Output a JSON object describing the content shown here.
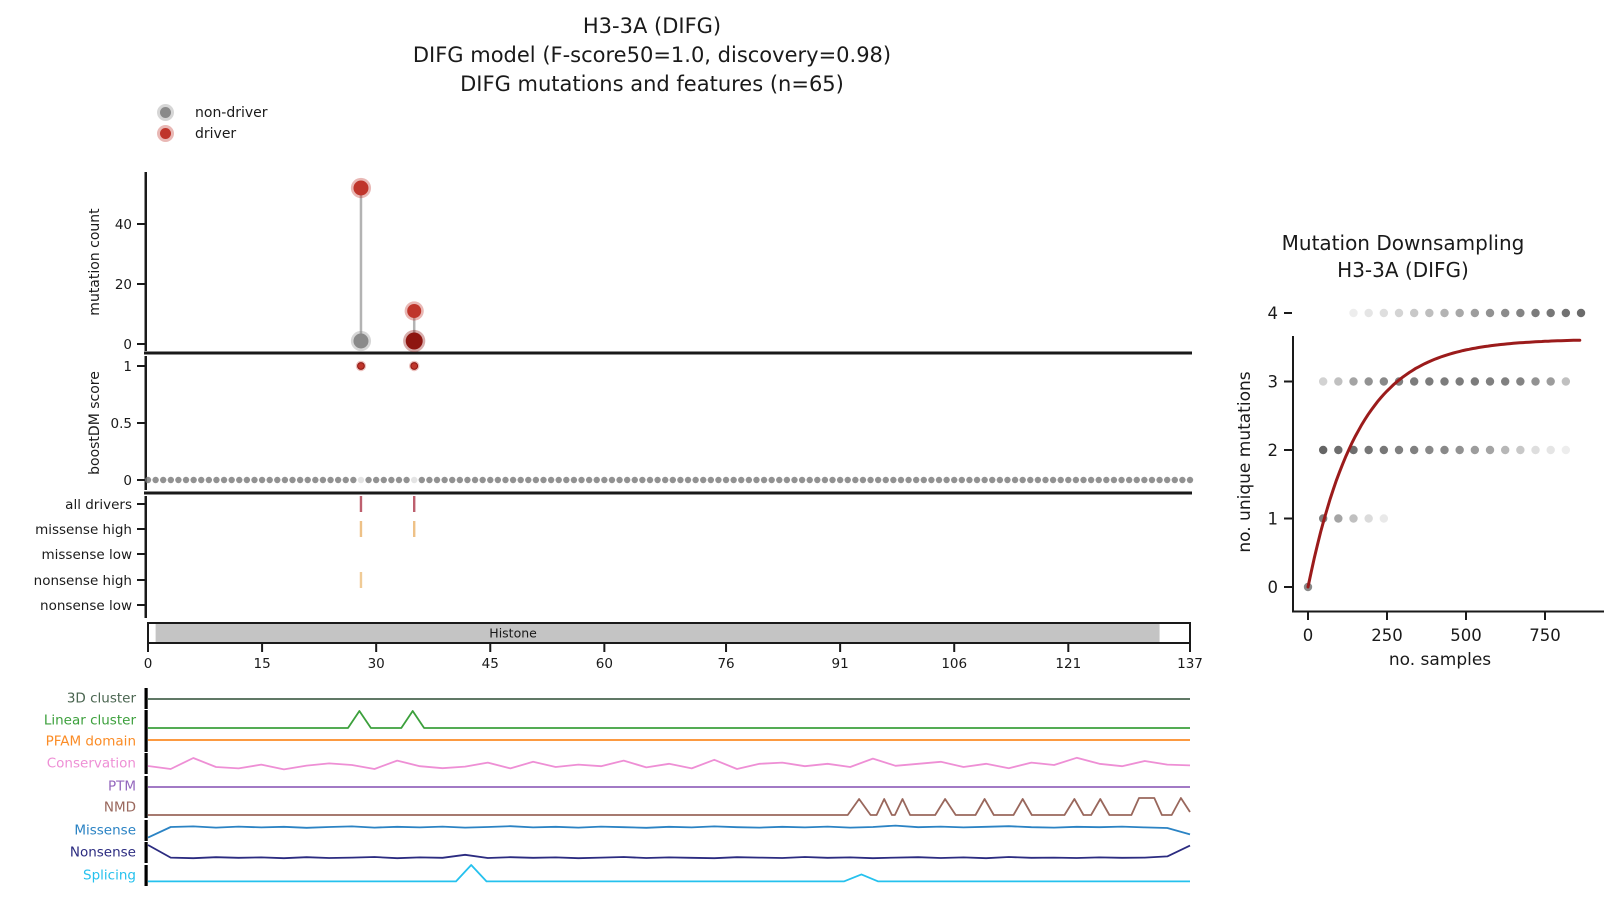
{
  "header": {
    "line1": "H3-3A (DIFG)",
    "line2": "DIFG model (F-score50=1.0, discovery=0.98)",
    "line3": "DIFG mutations and features (n=65)"
  },
  "legend": {
    "nondriver": "non-driver",
    "driver": "driver"
  },
  "colors": {
    "driver": "#bf352b",
    "driver_dark": "#8e1510",
    "nondriver": "#8a8a8a",
    "stem": "#b3b3b3",
    "zero_row_dot": "#777777",
    "axis": "#1a1a1a",
    "domain_bar_fill": "#c4c4c4",
    "downsampling_curve": "#9b1b1b",
    "downsampling_dot": "#4a4a4a"
  },
  "chart_data": [
    {
      "type": "scatter",
      "name": "mutations_needle_plot",
      "xlim": [
        0,
        137
      ],
      "xticks": [
        0,
        15,
        30,
        45,
        60,
        76,
        91,
        106,
        121,
        137
      ],
      "panels": {
        "mutation_count": {
          "ylabel": "mutation count",
          "yticks": [
            0,
            20,
            40
          ],
          "lollipops": [
            {
              "pos": 28,
              "stem_from": 1,
              "stem_to": 52,
              "points": [
                {
                  "count": 52,
                  "class": "driver",
                  "r": 7.5
                },
                {
                  "count": 1,
                  "class": "non-driver",
                  "r": 7.5
                }
              ]
            },
            {
              "pos": 35,
              "stem_from": 1,
              "stem_to": 11,
              "points": [
                {
                  "count": 11,
                  "class": "driver",
                  "r": 7
                },
                {
                  "count": 1,
                  "class": "driver-dark",
                  "r": 8.5
                }
              ]
            }
          ]
        },
        "boostdm_score": {
          "ylabel": "boostDM score",
          "yticks": [
            0,
            0.5,
            1
          ],
          "driver_points": [
            {
              "pos": 28,
              "score": 1
            },
            {
              "pos": 35,
              "score": 1
            }
          ],
          "zero_row": {
            "score": 0,
            "from": 0,
            "to": 137,
            "light_positions": [
              28,
              35
            ]
          }
        },
        "driver_tracks": {
          "rows": [
            {
              "label": "all drivers",
              "ticks": [
                28,
                35
              ],
              "color": "#bd5f6e"
            },
            {
              "label": "missense high",
              "ticks": [
                28,
                35
              ],
              "color": "#eec187"
            },
            {
              "label": "missense low",
              "ticks": [],
              "color": "#eec187"
            },
            {
              "label": "nonsense high",
              "ticks": [
                28
              ],
              "color": "#f0cb96"
            },
            {
              "label": "nonsense low",
              "ticks": [],
              "color": "#f0cb96"
            }
          ]
        },
        "domain_bar": {
          "label": "Histone",
          "start": 1,
          "end": 133,
          "label_pos": 48
        }
      }
    },
    {
      "type": "line",
      "name": "feature_tracks",
      "xlim": [
        0,
        137
      ],
      "tracks": [
        {
          "label": "3D cluster",
          "color": "#4a6550",
          "shape": "flat"
        },
        {
          "label": "Linear cluster",
          "color": "#3ca03c",
          "shape": "keypoints",
          "points": [
            [
              0,
              0
            ],
            [
              26.3,
              0
            ],
            [
              27.8,
              0.85
            ],
            [
              29.3,
              0
            ],
            [
              33.3,
              0
            ],
            [
              34.8,
              0.85
            ],
            [
              36.3,
              0
            ],
            [
              137,
              0
            ]
          ]
        },
        {
          "label": "PFAM domain",
          "color": "#fb8c26",
          "shape": "flat"
        },
        {
          "label": "Conservation",
          "color": "#ee8fd5",
          "shape": "values",
          "values": [
            0.45,
            0.3,
            0.85,
            0.4,
            0.33,
            0.52,
            0.28,
            0.47,
            0.58,
            0.5,
            0.3,
            0.72,
            0.44,
            0.34,
            0.42,
            0.62,
            0.33,
            0.66,
            0.4,
            0.52,
            0.44,
            0.72,
            0.38,
            0.56,
            0.33,
            0.76,
            0.3,
            0.56,
            0.62,
            0.44,
            0.56,
            0.4,
            0.82,
            0.46,
            0.56,
            0.66,
            0.4,
            0.56,
            0.34,
            0.62,
            0.5,
            0.86,
            0.56,
            0.44,
            0.7,
            0.52,
            0.48
          ]
        },
        {
          "label": "PTM",
          "color": "#9467bd",
          "shape": "flat"
        },
        {
          "label": "NMD",
          "color": "#99675c",
          "shape": "keypoints",
          "points": [
            [
              0,
              0
            ],
            [
              92,
              0
            ],
            [
              93.5,
              0.8
            ],
            [
              95,
              0
            ],
            [
              95.8,
              0
            ],
            [
              96.8,
              0.8
            ],
            [
              97.8,
              0
            ],
            [
              98.2,
              0
            ],
            [
              99.2,
              0.8
            ],
            [
              100.2,
              0
            ],
            [
              103.5,
              0
            ],
            [
              104.8,
              0.8
            ],
            [
              106.2,
              0
            ],
            [
              108.8,
              0
            ],
            [
              110,
              0.8
            ],
            [
              111.2,
              0
            ],
            [
              113.8,
              0
            ],
            [
              115,
              0.8
            ],
            [
              116.2,
              0
            ],
            [
              120.5,
              0
            ],
            [
              121.8,
              0.8
            ],
            [
              123,
              0
            ],
            [
              124,
              0
            ],
            [
              125.2,
              0.8
            ],
            [
              126.4,
              0
            ],
            [
              129.3,
              0
            ],
            [
              130.3,
              0.85
            ],
            [
              132.3,
              0.85
            ],
            [
              133.3,
              0
            ],
            [
              134.6,
              0
            ],
            [
              135.8,
              0.85
            ],
            [
              137,
              0.15
            ]
          ]
        },
        {
          "label": "Missense",
          "color": "#2b83c4",
          "shape": "values",
          "values": [
            0.02,
            0.55,
            0.58,
            0.52,
            0.57,
            0.53,
            0.56,
            0.51,
            0.55,
            0.58,
            0.52,
            0.56,
            0.53,
            0.57,
            0.52,
            0.55,
            0.59,
            0.53,
            0.56,
            0.52,
            0.57,
            0.54,
            0.51,
            0.56,
            0.53,
            0.58,
            0.54,
            0.52,
            0.56,
            0.53,
            0.57,
            0.52,
            0.55,
            0.62,
            0.54,
            0.57,
            0.53,
            0.56,
            0.59,
            0.54,
            0.52,
            0.56,
            0.54,
            0.57,
            0.53,
            0.5,
            0.18
          ]
        },
        {
          "label": "Nonsense",
          "color": "#2b2b80",
          "shape": "values",
          "values": [
            0.75,
            0.12,
            0.09,
            0.14,
            0.11,
            0.13,
            0.09,
            0.14,
            0.1,
            0.12,
            0.15,
            0.09,
            0.13,
            0.11,
            0.26,
            0.1,
            0.14,
            0.11,
            0.13,
            0.09,
            0.12,
            0.15,
            0.1,
            0.13,
            0.11,
            0.09,
            0.14,
            0.12,
            0.1,
            0.15,
            0.11,
            0.13,
            0.09,
            0.12,
            0.14,
            0.1,
            0.13,
            0.09,
            0.15,
            0.11,
            0.12,
            0.1,
            0.13,
            0.11,
            0.12,
            0.18,
            0.72
          ]
        },
        {
          "label": "Splicing",
          "color": "#25c1ee",
          "shape": "keypoints",
          "points": [
            [
              0,
              0.03
            ],
            [
              40.5,
              0.03
            ],
            [
              42.5,
              0.85
            ],
            [
              44.5,
              0.03
            ],
            [
              91.5,
              0.03
            ],
            [
              93.8,
              0.38
            ],
            [
              96,
              0.03
            ],
            [
              137,
              0.03
            ]
          ]
        }
      ]
    },
    {
      "type": "scatter",
      "name": "mutation_downsampling",
      "title_line1": "Mutation Downsampling",
      "title_line2": "H3-3A (DIFG)",
      "xlabel": "no. samples",
      "ylabel": "no. unique mutations",
      "xticks": [
        0,
        250,
        500,
        750
      ],
      "yticks": [
        0,
        1,
        2,
        3,
        4
      ],
      "xlim": [
        0,
        880
      ],
      "ylim": [
        0,
        4.3
      ],
      "curve": {
        "max_unique": 3.62,
        "tau": 160,
        "x_end": 860
      },
      "dot_rows": [
        {
          "y": 0,
          "x": [
            0
          ],
          "opacity": [
            0.65
          ]
        },
        {
          "y": 1,
          "x": [
            48,
            96,
            144,
            192,
            240
          ],
          "opacity": [
            0.7,
            0.5,
            0.35,
            0.2,
            0.12
          ]
        },
        {
          "y": 2,
          "x": [
            48,
            96,
            144,
            192,
            240,
            288,
            336,
            384,
            432,
            480,
            528,
            576,
            624,
            672,
            720,
            768,
            816
          ],
          "opacity": [
            0.85,
            0.8,
            0.8,
            0.75,
            0.75,
            0.7,
            0.7,
            0.65,
            0.65,
            0.6,
            0.55,
            0.5,
            0.4,
            0.3,
            0.18,
            0.14,
            0.1
          ]
        },
        {
          "y": 3,
          "x": [
            48,
            96,
            144,
            192,
            240,
            288,
            336,
            384,
            432,
            480,
            528,
            576,
            624,
            672,
            720,
            768,
            816
          ],
          "opacity": [
            0.25,
            0.35,
            0.5,
            0.6,
            0.65,
            0.7,
            0.72,
            0.72,
            0.72,
            0.72,
            0.72,
            0.7,
            0.7,
            0.68,
            0.6,
            0.55,
            0.35
          ]
        },
        {
          "y": 4,
          "x": [
            144,
            192,
            240,
            288,
            336,
            384,
            432,
            480,
            528,
            576,
            624,
            672,
            720,
            768,
            816,
            864
          ],
          "opacity": [
            0.1,
            0.14,
            0.18,
            0.24,
            0.3,
            0.36,
            0.42,
            0.48,
            0.54,
            0.6,
            0.64,
            0.68,
            0.72,
            0.75,
            0.78,
            0.82
          ]
        }
      ]
    }
  ]
}
